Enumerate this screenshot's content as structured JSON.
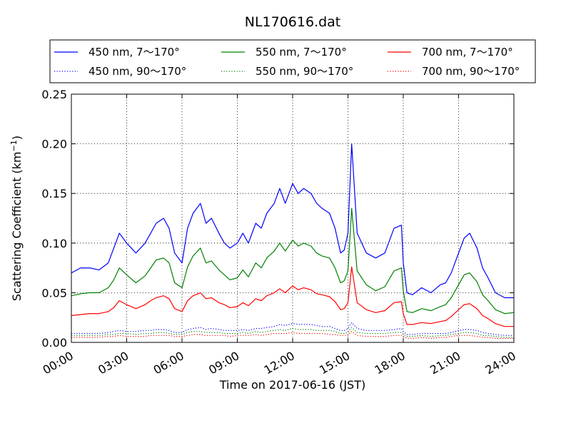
{
  "chart_data": {
    "type": "line",
    "title": "NL170616.dat",
    "xlabel": "Time on 2017-06-16 (JST)",
    "ylabel": "Scattering Coefficient (km",
    "ylabel_sup": "−1",
    "ylabel_tail": ")",
    "xlim": [
      0,
      24
    ],
    "ylim": [
      0,
      0.25
    ],
    "grid": true,
    "legend_position": "top",
    "x_ticks": [
      0,
      3,
      6,
      9,
      12,
      15,
      18,
      21,
      24
    ],
    "x_tick_labels": [
      "00:00",
      "03:00",
      "06:00",
      "09:00",
      "12:00",
      "15:00",
      "18:00",
      "21:00",
      "24:00"
    ],
    "y_ticks": [
      0,
      0.05,
      0.1,
      0.15,
      0.2,
      0.25
    ],
    "y_tick_labels": [
      "0.00",
      "0.05",
      "0.10",
      "0.15",
      "0.20",
      "0.25"
    ],
    "x_hours": [
      0,
      0.5,
      1,
      1.5,
      2,
      2.3,
      2.6,
      3,
      3.5,
      4,
      4.3,
      4.6,
      5,
      5.3,
      5.6,
      6,
      6.3,
      6.6,
      7,
      7.3,
      7.6,
      8,
      8.3,
      8.6,
      9,
      9.3,
      9.6,
      10,
      10.3,
      10.6,
      11,
      11.3,
      11.6,
      12,
      12.3,
      12.6,
      13,
      13.3,
      13.6,
      14,
      14.3,
      14.6,
      14.8,
      15,
      15.2,
      15.5,
      16,
      16.5,
      17,
      17.5,
      17.9,
      18,
      18.2,
      18.5,
      19,
      19.5,
      20,
      20.3,
      20.6,
      21,
      21.3,
      21.6,
      22,
      22.3,
      22.6,
      23,
      23.5,
      24
    ],
    "series": [
      {
        "name": "450 nm, 7～170°",
        "color": "#0000ff",
        "style": "solid",
        "values": [
          0.07,
          0.075,
          0.075,
          0.073,
          0.08,
          0.095,
          0.11,
          0.1,
          0.09,
          0.1,
          0.11,
          0.12,
          0.125,
          0.115,
          0.09,
          0.08,
          0.115,
          0.13,
          0.14,
          0.12,
          0.125,
          0.11,
          0.1,
          0.095,
          0.1,
          0.11,
          0.1,
          0.12,
          0.115,
          0.13,
          0.14,
          0.155,
          0.14,
          0.16,
          0.15,
          0.155,
          0.15,
          0.14,
          0.135,
          0.13,
          0.115,
          0.09,
          0.093,
          0.11,
          0.2,
          0.11,
          0.09,
          0.085,
          0.09,
          0.115,
          0.118,
          0.08,
          0.05,
          0.048,
          0.055,
          0.05,
          0.058,
          0.06,
          0.07,
          0.09,
          0.105,
          0.11,
          0.095,
          0.075,
          0.065,
          0.05,
          0.045,
          0.045
        ]
      },
      {
        "name": "550 nm, 7～170°",
        "color": "#008000",
        "style": "solid",
        "values": [
          0.047,
          0.049,
          0.05,
          0.05,
          0.055,
          0.063,
          0.075,
          0.068,
          0.06,
          0.067,
          0.075,
          0.083,
          0.085,
          0.08,
          0.06,
          0.055,
          0.076,
          0.087,
          0.095,
          0.08,
          0.082,
          0.073,
          0.068,
          0.063,
          0.065,
          0.073,
          0.066,
          0.08,
          0.075,
          0.085,
          0.092,
          0.1,
          0.092,
          0.103,
          0.097,
          0.1,
          0.097,
          0.09,
          0.087,
          0.085,
          0.075,
          0.06,
          0.062,
          0.072,
          0.135,
          0.072,
          0.058,
          0.052,
          0.056,
          0.072,
          0.075,
          0.052,
          0.031,
          0.03,
          0.034,
          0.032,
          0.036,
          0.038,
          0.045,
          0.058,
          0.068,
          0.07,
          0.061,
          0.048,
          0.042,
          0.033,
          0.029,
          0.03
        ]
      },
      {
        "name": "700 nm, 7～170°",
        "color": "#ff0000",
        "style": "solid",
        "values": [
          0.027,
          0.028,
          0.029,
          0.029,
          0.031,
          0.035,
          0.042,
          0.038,
          0.034,
          0.038,
          0.042,
          0.045,
          0.047,
          0.044,
          0.034,
          0.031,
          0.042,
          0.047,
          0.05,
          0.044,
          0.045,
          0.04,
          0.038,
          0.035,
          0.036,
          0.04,
          0.037,
          0.044,
          0.042,
          0.047,
          0.05,
          0.054,
          0.05,
          0.057,
          0.053,
          0.055,
          0.053,
          0.049,
          0.048,
          0.046,
          0.041,
          0.033,
          0.034,
          0.04,
          0.076,
          0.04,
          0.033,
          0.03,
          0.032,
          0.04,
          0.041,
          0.029,
          0.018,
          0.018,
          0.02,
          0.019,
          0.021,
          0.022,
          0.026,
          0.033,
          0.038,
          0.039,
          0.034,
          0.027,
          0.024,
          0.019,
          0.016,
          0.016
        ]
      },
      {
        "name": "450 nm, 90～170°",
        "color": "#0000ff",
        "style": "dotted",
        "values": [
          0.009,
          0.009,
          0.009,
          0.009,
          0.01,
          0.011,
          0.012,
          0.011,
          0.011,
          0.012,
          0.012,
          0.013,
          0.013,
          0.012,
          0.01,
          0.01,
          0.013,
          0.014,
          0.015,
          0.013,
          0.014,
          0.013,
          0.012,
          0.012,
          0.012,
          0.013,
          0.012,
          0.014,
          0.014,
          0.015,
          0.016,
          0.018,
          0.017,
          0.019,
          0.018,
          0.018,
          0.018,
          0.017,
          0.016,
          0.016,
          0.014,
          0.012,
          0.012,
          0.014,
          0.02,
          0.014,
          0.012,
          0.012,
          0.012,
          0.013,
          0.014,
          0.011,
          0.008,
          0.008,
          0.009,
          0.009,
          0.009,
          0.009,
          0.01,
          0.012,
          0.013,
          0.013,
          0.012,
          0.01,
          0.009,
          0.008,
          0.007,
          0.007
        ]
      },
      {
        "name": "550 nm, 90～170°",
        "color": "#008000",
        "style": "dotted",
        "values": [
          0.007,
          0.007,
          0.007,
          0.007,
          0.008,
          0.008,
          0.009,
          0.009,
          0.008,
          0.009,
          0.009,
          0.01,
          0.01,
          0.009,
          0.008,
          0.008,
          0.01,
          0.011,
          0.011,
          0.01,
          0.01,
          0.01,
          0.009,
          0.009,
          0.009,
          0.01,
          0.009,
          0.011,
          0.01,
          0.011,
          0.012,
          0.013,
          0.012,
          0.014,
          0.013,
          0.013,
          0.013,
          0.012,
          0.012,
          0.012,
          0.011,
          0.009,
          0.009,
          0.01,
          0.015,
          0.01,
          0.009,
          0.009,
          0.009,
          0.01,
          0.01,
          0.008,
          0.006,
          0.006,
          0.007,
          0.006,
          0.007,
          0.007,
          0.008,
          0.009,
          0.01,
          0.01,
          0.009,
          0.007,
          0.007,
          0.006,
          0.005,
          0.005
        ]
      },
      {
        "name": "700 nm, 90～170°",
        "color": "#ff0000",
        "style": "dotted",
        "values": [
          0.005,
          0.005,
          0.005,
          0.005,
          0.006,
          0.006,
          0.007,
          0.006,
          0.006,
          0.006,
          0.007,
          0.007,
          0.007,
          0.007,
          0.006,
          0.006,
          0.007,
          0.008,
          0.008,
          0.007,
          0.007,
          0.007,
          0.007,
          0.006,
          0.007,
          0.007,
          0.007,
          0.008,
          0.007,
          0.008,
          0.009,
          0.009,
          0.009,
          0.01,
          0.009,
          0.009,
          0.009,
          0.009,
          0.009,
          0.008,
          0.008,
          0.007,
          0.007,
          0.007,
          0.011,
          0.007,
          0.006,
          0.006,
          0.006,
          0.007,
          0.007,
          0.006,
          0.004,
          0.004,
          0.005,
          0.004,
          0.005,
          0.005,
          0.006,
          0.007,
          0.007,
          0.007,
          0.006,
          0.005,
          0.005,
          0.004,
          0.004,
          0.004
        ]
      }
    ],
    "legend_order": [
      0,
      1,
      2,
      3,
      4,
      5
    ]
  }
}
